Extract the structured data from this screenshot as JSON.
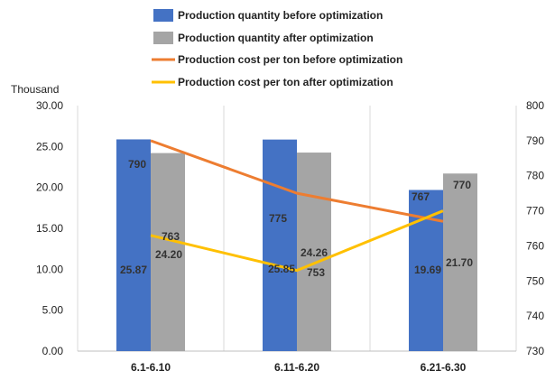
{
  "chart_data": {
    "type": "bar",
    "categories": [
      "6.1-6.10",
      "6.11-6.20",
      "6.21-6.30"
    ],
    "series": [
      {
        "name": "Production quantity before optimization",
        "kind": "bar",
        "axis": "left",
        "color": "#4472C4",
        "values": [
          25.87,
          25.85,
          19.69
        ],
        "labels": [
          "25.87",
          "25.85",
          "19.69"
        ]
      },
      {
        "name": "Production quantity after optimization",
        "kind": "bar",
        "axis": "left",
        "color": "#A5A5A5",
        "values": [
          24.2,
          24.26,
          21.7
        ],
        "labels": [
          "24.20",
          "24.26",
          "21.70"
        ]
      },
      {
        "name": "Production cost per ton before optimization",
        "kind": "line",
        "axis": "right",
        "color": "#ED7D31",
        "values": [
          790,
          775,
          767
        ],
        "labels": [
          "790",
          "775",
          "767"
        ]
      },
      {
        "name": "Production cost per ton after optimization",
        "kind": "line",
        "axis": "right",
        "color": "#FFC000",
        "values": [
          763,
          753,
          770
        ],
        "labels": [
          "763",
          "753",
          "770"
        ]
      }
    ],
    "ylabel": "Thousand",
    "ylim": [
      0,
      30
    ],
    "yticks": [
      "0.00",
      "5.00",
      "10.00",
      "15.00",
      "20.00",
      "25.00",
      "30.00"
    ],
    "y2lim": [
      730,
      800
    ],
    "y2ticks": [
      "730",
      "740",
      "750",
      "760",
      "770",
      "780",
      "790",
      "800"
    ],
    "grid": "vertical category separators",
    "legend": "top"
  }
}
